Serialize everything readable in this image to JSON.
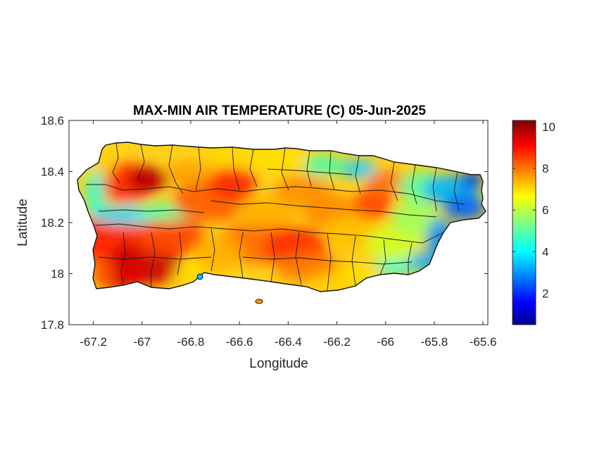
{
  "title": "MAX-MIN AIR TEMPERATURE (C) 05-Jun-2025",
  "map": {
    "xlabel": "Longitude",
    "ylabel": "Latitude",
    "x_ticks": [
      "-67.2",
      "-67",
      "-66.8",
      "-66.6",
      "-66.4",
      "-66.2",
      "-66",
      "-65.8",
      "-65.6"
    ],
    "y_ticks": [
      "18.6",
      "18.4",
      "18.2",
      "18",
      "17.8"
    ],
    "colorbar_ticks": [
      "10",
      "8",
      "6",
      "4",
      "2"
    ],
    "colormap": "jet",
    "colorbar_range": [
      0.5,
      10.3
    ]
  },
  "chart_data": {
    "type": "heatmap",
    "title": "MAX-MIN AIR TEMPERATURE (C) 05-Jun-2025",
    "xlabel": "Longitude",
    "ylabel": "Latitude",
    "xlim": [
      -67.3,
      -65.58
    ],
    "ylim": [
      17.8,
      18.6
    ],
    "x_ticks": [
      -67.2,
      -67,
      -66.8,
      -66.6,
      -66.4,
      -66.2,
      -66,
      -65.8,
      -65.6
    ],
    "y_ticks": [
      18.6,
      18.4,
      18.2,
      18,
      17.8
    ],
    "colorbar": {
      "min": 0.5,
      "max": 10.3,
      "ticks": [
        2,
        4,
        6,
        8,
        10
      ],
      "colormap": "jet"
    },
    "grid": false
  }
}
